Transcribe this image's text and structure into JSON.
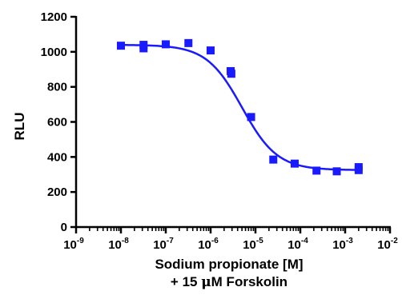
{
  "chart_data": {
    "type": "scatter",
    "xlabel": "Sodium propionate [M]",
    "xlabel2_prefix": "+ 15 ",
    "xlabel2_unit_mu": "μ",
    "xlabel2_suffix": "M Forskolin",
    "ylabel": "RLU",
    "xscale": "log",
    "xlim": [
      1e-09,
      0.01
    ],
    "ylim": [
      0,
      1200
    ],
    "yticks": [
      0,
      200,
      400,
      600,
      800,
      1000,
      1200
    ],
    "xticks": [
      {
        "value": 1e-09,
        "base": "10",
        "exp": "-9"
      },
      {
        "value": 1e-08,
        "base": "10",
        "exp": "-8"
      },
      {
        "value": 1e-07,
        "base": "10",
        "exp": "-7"
      },
      {
        "value": 1e-06,
        "base": "10",
        "exp": "-6"
      },
      {
        "value": 1e-05,
        "base": "10",
        "exp": "-5"
      },
      {
        "value": 0.0001,
        "base": "10",
        "exp": "-4"
      },
      {
        "value": 0.001,
        "base": "10",
        "exp": "-3"
      },
      {
        "value": 0.01,
        "base": "10",
        "exp": "-2"
      }
    ],
    "points": [
      {
        "x": 1e-08,
        "y": 1035
      },
      {
        "x": 3.2e-08,
        "y": 1040
      },
      {
        "x": 3.2e-08,
        "y": 1020
      },
      {
        "x": 1e-07,
        "y": 1043
      },
      {
        "x": 3.2e-07,
        "y": 1050
      },
      {
        "x": 1e-06,
        "y": 1008
      },
      {
        "x": 2.8e-06,
        "y": 890
      },
      {
        "x": 2.9e-06,
        "y": 875
      },
      {
        "x": 8e-06,
        "y": 628
      },
      {
        "x": 2.5e-05,
        "y": 385
      },
      {
        "x": 7.5e-05,
        "y": 362
      },
      {
        "x": 0.00023,
        "y": 322
      },
      {
        "x": 0.00065,
        "y": 318
      },
      {
        "x": 0.002,
        "y": 342
      },
      {
        "x": 0.002,
        "y": 325
      }
    ],
    "fit": {
      "bottom": 325,
      "top": 1040,
      "logEC50": -5.3,
      "hill": -1.1
    },
    "color": "#1a1aff"
  }
}
